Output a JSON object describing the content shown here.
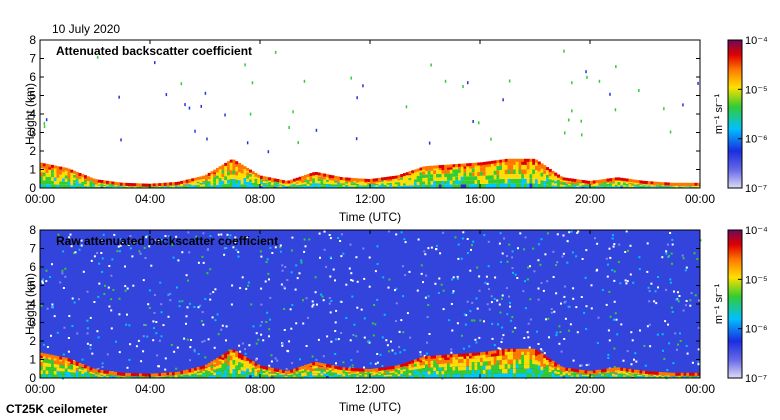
{
  "figure": {
    "date": "10 July 2020",
    "instrument": "CT25K ceilometer"
  },
  "chart_data": [
    {
      "type": "heatmap",
      "title": "Attenuated backscatter coefficient",
      "xlabel": "Time (UTC)",
      "ylabel": "Height (km)",
      "x_ticks": [
        "00:00",
        "04:00",
        "08:00",
        "12:00",
        "16:00",
        "20:00",
        "00:00"
      ],
      "xlim_hours": [
        0,
        24
      ],
      "ylim": [
        0,
        8
      ],
      "y_ticks": [
        0,
        1,
        2,
        3,
        4,
        5,
        6,
        7,
        8
      ],
      "grid": false,
      "colorbar": {
        "scale": "log",
        "range": [
          1e-07,
          0.0001
        ],
        "tick_labels": [
          "10⁻⁴",
          "10⁻⁵",
          "10⁻⁶",
          "10⁻⁷"
        ],
        "label": "m⁻¹ sr⁻¹",
        "colors": [
          "#d8d8f4",
          "#2233dd",
          "#00c8ff",
          "#33cc33",
          "#ffdd00",
          "#ff7700",
          "#e00000",
          "#6a0a5a"
        ]
      },
      "boundary_layer_top_km": [
        [
          0,
          1.3
        ],
        [
          1,
          1.0
        ],
        [
          2,
          0.4
        ],
        [
          3,
          0.2
        ],
        [
          4,
          0.15
        ],
        [
          5,
          0.25
        ],
        [
          6,
          0.6
        ],
        [
          7,
          1.5
        ],
        [
          8,
          0.6
        ],
        [
          9,
          0.3
        ],
        [
          10,
          0.8
        ],
        [
          11,
          0.5
        ],
        [
          12,
          0.4
        ],
        [
          13,
          0.6
        ],
        [
          14,
          1.1
        ],
        [
          15,
          1.2
        ],
        [
          16,
          1.3
        ],
        [
          17,
          1.5
        ],
        [
          18,
          1.5
        ],
        [
          19,
          0.5
        ],
        [
          20,
          0.3
        ],
        [
          21,
          0.5
        ],
        [
          22,
          0.3
        ],
        [
          23,
          0.2
        ],
        [
          24,
          0.2
        ]
      ],
      "noise_level": "low"
    },
    {
      "type": "heatmap",
      "title": "Raw attenuated backscatter coefficient",
      "xlabel": "Time (UTC)",
      "ylabel": "Height (km)",
      "x_ticks": [
        "00:00",
        "04:00",
        "08:00",
        "12:00",
        "16:00",
        "20:00",
        "00:00"
      ],
      "xlim_hours": [
        0,
        24
      ],
      "ylim": [
        0,
        8
      ],
      "y_ticks": [
        0,
        1,
        2,
        3,
        4,
        5,
        6,
        7,
        8
      ],
      "grid": false,
      "colorbar": {
        "scale": "log",
        "range": [
          1e-07,
          0.0001
        ],
        "tick_labels": [
          "10⁻⁴",
          "10⁻⁵",
          "10⁻⁶",
          "10⁻⁷"
        ],
        "label": "m⁻¹ sr⁻¹",
        "colors": [
          "#d8d8f4",
          "#2233dd",
          "#00c8ff",
          "#33cc33",
          "#ffdd00",
          "#ff7700",
          "#e00000",
          "#6a0a5a"
        ]
      },
      "boundary_layer_top_km": [
        [
          0,
          1.3
        ],
        [
          1,
          1.0
        ],
        [
          2,
          0.4
        ],
        [
          3,
          0.2
        ],
        [
          4,
          0.15
        ],
        [
          5,
          0.25
        ],
        [
          6,
          0.6
        ],
        [
          7,
          1.5
        ],
        [
          8,
          0.6
        ],
        [
          9,
          0.3
        ],
        [
          10,
          0.8
        ],
        [
          11,
          0.5
        ],
        [
          12,
          0.4
        ],
        [
          13,
          0.6
        ],
        [
          14,
          1.1
        ],
        [
          15,
          1.2
        ],
        [
          16,
          1.3
        ],
        [
          17,
          1.5
        ],
        [
          18,
          1.5
        ],
        [
          19,
          0.5
        ],
        [
          20,
          0.3
        ],
        [
          21,
          0.5
        ],
        [
          22,
          0.3
        ],
        [
          23,
          0.2
        ],
        [
          24,
          0.2
        ]
      ],
      "noise_level": "high"
    }
  ]
}
